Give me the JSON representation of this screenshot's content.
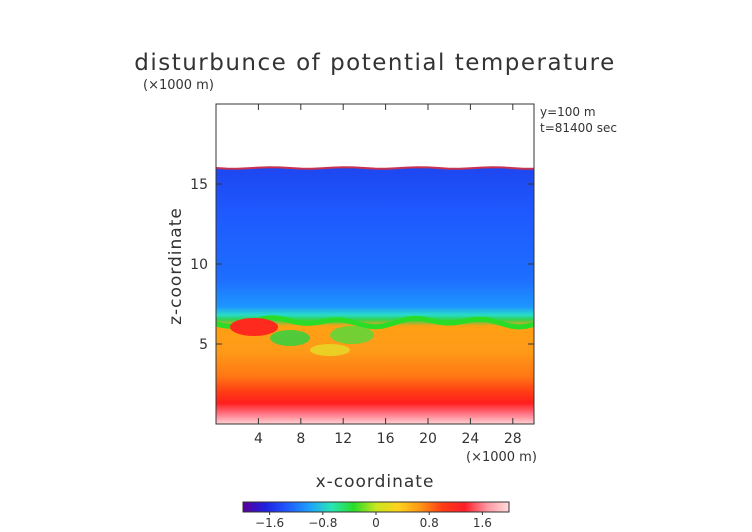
{
  "chart_data": {
    "type": "heatmap",
    "title": "disturbunce of potential temperature",
    "y_unit_label": "(×1000 m)",
    "x_unit_label": "(×1000 m)",
    "xlabel": "x-coordinate",
    "ylabel": "z-coordinate",
    "annotations": [
      "y=100 m",
      "t=81400 sec"
    ],
    "xlim": [
      0,
      30
    ],
    "ylim": [
      0,
      20
    ],
    "x_ticks": [
      4,
      8,
      12,
      16,
      20,
      24,
      28
    ],
    "y_ticks": [
      5,
      10,
      15
    ],
    "colorbar": {
      "range": [
        -2,
        2
      ],
      "ticks": [
        "−1.6",
        "−0.8",
        "0",
        "0.8",
        "1.6"
      ],
      "tick_values": [
        -1.6,
        -0.8,
        0,
        0.8,
        1.6
      ],
      "colors": [
        "#5a0096",
        "#2020e0",
        "#1e5aff",
        "#1ea0ff",
        "#28e6b4",
        "#28dc28",
        "#c8e61e",
        "#ffd21e",
        "#ff9614",
        "#ff3c14",
        "#ff1e28",
        "#ff96a0",
        "#ffdcdc"
      ]
    },
    "fields": {
      "domain_top_z": 16,
      "boundary_layer_top_z": 6.5,
      "upper_value": -1.2,
      "surface_value": 1.5
    }
  }
}
